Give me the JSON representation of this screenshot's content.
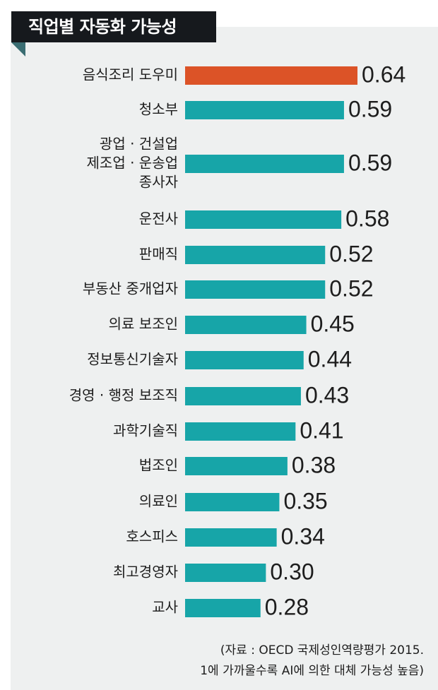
{
  "chart_data": {
    "type": "bar",
    "orientation": "horizontal",
    "title": "직업별 자동화 가능성",
    "categories": [
      "음식조리 도우미",
      "청소부",
      "광업 · 건설업 제조업 · 운송업 종사자",
      "운전사",
      "판매직",
      "부동산 중개업자",
      "의료 보조인",
      "정보통신기술자",
      "경영 · 행정 보조직",
      "과학기술직",
      "법조인",
      "의료인",
      "호스피스",
      "최고경영자",
      "교사"
    ],
    "category_lines": [
      [
        "음식조리 도우미"
      ],
      [
        "청소부"
      ],
      [
        "광업 · 건설업",
        "제조업 · 운송업",
        "종사자"
      ],
      [
        "운전사"
      ],
      [
        "판매직"
      ],
      [
        "부동산 중개업자"
      ],
      [
        "의료 보조인"
      ],
      [
        "정보통신기술자"
      ],
      [
        "경영 · 행정 보조직"
      ],
      [
        "과학기술직"
      ],
      [
        "법조인"
      ],
      [
        "의료인"
      ],
      [
        "호스피스"
      ],
      [
        "최고경영자"
      ],
      [
        "교사"
      ]
    ],
    "values": [
      0.64,
      0.59,
      0.59,
      0.58,
      0.52,
      0.52,
      0.45,
      0.44,
      0.43,
      0.41,
      0.38,
      0.35,
      0.34,
      0.3,
      0.28
    ],
    "value_labels": [
      "0.64",
      "0.59",
      "0.59",
      "0.58",
      "0.52",
      "0.52",
      "0.45",
      "0.44",
      "0.43",
      "0.41",
      "0.38",
      "0.35",
      "0.34",
      "0.30",
      "0.28"
    ],
    "highlight_index": 0,
    "colors": {
      "highlight": "#dc5327",
      "bar": "#17a5a8"
    },
    "xlim": [
      0,
      0.64
    ]
  },
  "source": {
    "line1": "(자료 : OECD 국제성인역량평가 2015.",
    "line2": "1에 가까울수록 AI에 의한 대체 가능성 높음)"
  }
}
